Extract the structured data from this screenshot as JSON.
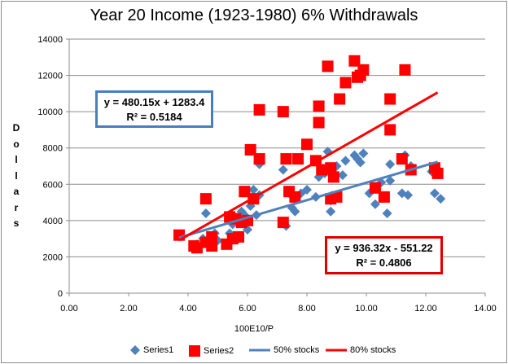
{
  "chart_data": {
    "type": "scatter",
    "title": "Year 20 Income (1923-1980) 6% Withdrawals",
    "xlabel": "100E10/P",
    "ylabel": "Dollars",
    "xlim": [
      0,
      14
    ],
    "ylim": [
      0,
      14000
    ],
    "x_ticks": [
      "0.00",
      "2.00",
      "4.00",
      "6.00",
      "8.00",
      "10.00",
      "12.00",
      "14.00"
    ],
    "y_ticks": [
      "0",
      "2000",
      "4000",
      "6000",
      "8000",
      "10000",
      "12000",
      "14000"
    ],
    "grid": "horizontal",
    "legend_position": "bottom",
    "series": [
      {
        "name": "Series1",
        "marker": "diamond",
        "color": "#4f81bd",
        "points": [
          [
            3.7,
            3200
          ],
          [
            4.2,
            2500
          ],
          [
            4.3,
            2700
          ],
          [
            4.5,
            3000
          ],
          [
            4.6,
            4400
          ],
          [
            4.7,
            2800
          ],
          [
            4.9,
            3300
          ],
          [
            5.0,
            2900
          ],
          [
            5.3,
            2700
          ],
          [
            5.4,
            3300
          ],
          [
            5.5,
            3800
          ],
          [
            5.7,
            3000
          ],
          [
            5.8,
            4500
          ],
          [
            5.9,
            4300
          ],
          [
            6.0,
            3500
          ],
          [
            6.1,
            4800
          ],
          [
            6.2,
            5700
          ],
          [
            6.3,
            4300
          ],
          [
            6.4,
            5400
          ],
          [
            6.4,
            7100
          ],
          [
            7.2,
            6800
          ],
          [
            7.3,
            3700
          ],
          [
            7.4,
            5500
          ],
          [
            7.5,
            4700
          ],
          [
            7.6,
            4500
          ],
          [
            7.8,
            5500
          ],
          [
            8.0,
            5700
          ],
          [
            8.3,
            5300
          ],
          [
            8.4,
            6400
          ],
          [
            8.5,
            6700
          ],
          [
            8.6,
            6600
          ],
          [
            8.7,
            7800
          ],
          [
            8.8,
            5100
          ],
          [
            8.8,
            4500
          ],
          [
            9.0,
            7000
          ],
          [
            9.2,
            6500
          ],
          [
            9.3,
            7300
          ],
          [
            9.6,
            7600
          ],
          [
            9.7,
            7400
          ],
          [
            9.8,
            7200
          ],
          [
            9.9,
            7700
          ],
          [
            10.1,
            5500
          ],
          [
            10.3,
            4900
          ],
          [
            10.5,
            6100
          ],
          [
            10.7,
            4400
          ],
          [
            10.8,
            6200
          ],
          [
            10.8,
            7100
          ],
          [
            11.2,
            5500
          ],
          [
            11.3,
            7600
          ],
          [
            11.4,
            5400
          ],
          [
            11.5,
            7000
          ],
          [
            12.2,
            6700
          ],
          [
            12.3,
            5500
          ],
          [
            12.5,
            5200
          ]
        ]
      },
      {
        "name": "Series2",
        "marker": "square",
        "color": "#ff0000",
        "points": [
          [
            3.7,
            3200
          ],
          [
            4.2,
            2600
          ],
          [
            4.3,
            2500
          ],
          [
            4.6,
            5200
          ],
          [
            4.6,
            2800
          ],
          [
            4.8,
            2600
          ],
          [
            4.8,
            3100
          ],
          [
            5.3,
            2700
          ],
          [
            5.4,
            4200
          ],
          [
            5.5,
            3000
          ],
          [
            5.6,
            4100
          ],
          [
            5.7,
            3100
          ],
          [
            5.8,
            3900
          ],
          [
            5.9,
            5600
          ],
          [
            6.0,
            4000
          ],
          [
            6.1,
            7900
          ],
          [
            6.2,
            5200
          ],
          [
            6.4,
            10100
          ],
          [
            6.4,
            7400
          ],
          [
            7.2,
            10000
          ],
          [
            7.2,
            3900
          ],
          [
            7.3,
            7400
          ],
          [
            7.4,
            5600
          ],
          [
            7.6,
            5300
          ],
          [
            7.7,
            7400
          ],
          [
            8.0,
            8200
          ],
          [
            8.3,
            7300
          ],
          [
            8.4,
            10300
          ],
          [
            8.4,
            9400
          ],
          [
            8.5,
            6800
          ],
          [
            8.7,
            12500
          ],
          [
            8.8,
            5200
          ],
          [
            8.8,
            6900
          ],
          [
            8.9,
            6400
          ],
          [
            9.0,
            5300
          ],
          [
            9.1,
            10700
          ],
          [
            9.3,
            11600
          ],
          [
            9.6,
            12800
          ],
          [
            9.7,
            11900
          ],
          [
            9.8,
            12000
          ],
          [
            9.9,
            12300
          ],
          [
            10.3,
            5800
          ],
          [
            10.6,
            5300
          ],
          [
            10.8,
            10700
          ],
          [
            10.8,
            9000
          ],
          [
            11.2,
            7400
          ],
          [
            11.3,
            12300
          ],
          [
            11.5,
            6800
          ],
          [
            12.3,
            6900
          ],
          [
            12.4,
            6600
          ]
        ]
      }
    ],
    "trendlines": [
      {
        "name": "50% stocks",
        "color": "#4f81bd",
        "slope": 480.15,
        "intercept": 1283.4,
        "x_range": [
          3.7,
          12.4
        ]
      },
      {
        "name": "80% stocks",
        "color": "#ff0000",
        "slope": 936.32,
        "intercept": -551.22,
        "x_range": [
          3.7,
          12.4
        ]
      }
    ],
    "annotations": [
      {
        "equation": "y = 480.15x + 1283.4",
        "r2": "R² = 0.5184",
        "border_color": "#4a7ebb"
      },
      {
        "equation": "y = 936.32x - 551.22",
        "r2": "R² = 0.4806",
        "border_color": "#e00000"
      }
    ]
  }
}
